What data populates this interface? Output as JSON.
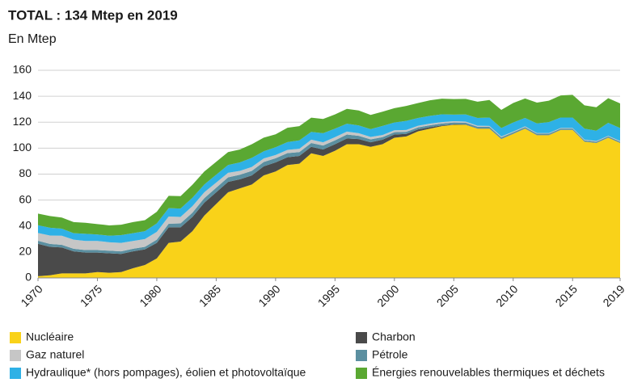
{
  "chart_data": {
    "type": "stacked_area",
    "title": "TOTAL : 134 Mtep en 2019",
    "subtitle": "En Mtep",
    "x": [
      1970,
      1971,
      1972,
      1973,
      1974,
      1975,
      1976,
      1977,
      1978,
      1979,
      1980,
      1981,
      1982,
      1983,
      1984,
      1985,
      1986,
      1987,
      1988,
      1989,
      1990,
      1991,
      1992,
      1993,
      1994,
      1995,
      1996,
      1997,
      1998,
      1999,
      2000,
      2001,
      2002,
      2003,
      2004,
      2005,
      2006,
      2007,
      2008,
      2009,
      2010,
      2011,
      2012,
      2013,
      2014,
      2015,
      2016,
      2017,
      2018,
      2019
    ],
    "xlim": [
      1970,
      2019
    ],
    "xticks": [
      1970,
      1975,
      1980,
      1985,
      1990,
      1995,
      2000,
      2005,
      2010,
      2015,
      2019
    ],
    "ylim": [
      0,
      160
    ],
    "yticks": [
      0,
      20,
      40,
      60,
      80,
      100,
      120,
      140,
      160
    ],
    "grid": true,
    "series": [
      {
        "name": "Nucléaire",
        "color": "#f9d219",
        "values": [
          1.3,
          2,
          3.5,
          3.5,
          3.5,
          4.5,
          4,
          4.5,
          7.5,
          10,
          15,
          27,
          28,
          36,
          48,
          57,
          66,
          69,
          72,
          79,
          82,
          87,
          88,
          96,
          94,
          98,
          103,
          103,
          101,
          103,
          108,
          109,
          113,
          115,
          117,
          118,
          118,
          115,
          115,
          107,
          111,
          115,
          110,
          110,
          114,
          114,
          105,
          104,
          108,
          104
        ]
      },
      {
        "name": "Charbon",
        "color": "#4a4a4a",
        "values": [
          25,
          22,
          20,
          17,
          16,
          15,
          15,
          14,
          13,
          12,
          12,
          12,
          11,
          11,
          10,
          9,
          8,
          7,
          7,
          7,
          7,
          6,
          6,
          5,
          5,
          5,
          4.5,
          4,
          3.5,
          3.5,
          2.5,
          2,
          1.5,
          1.2,
          0.5,
          0.3,
          0.2,
          0.2,
          0.2,
          0.1,
          0.1,
          0.1,
          0.1,
          0.1,
          0.1,
          0.1,
          0,
          0,
          0,
          0
        ]
      },
      {
        "name": "Pétrole",
        "color": "#5b8fa0",
        "values": [
          2.3,
          2.2,
          2,
          2,
          2,
          2,
          2,
          2,
          2,
          2,
          2.5,
          2.8,
          3,
          3.3,
          3.5,
          3.5,
          3.5,
          3.5,
          3.5,
          3.3,
          3.2,
          3.2,
          3,
          3,
          3,
          3,
          3,
          2.5,
          2.3,
          2,
          1.8,
          1.6,
          1.5,
          1.5,
          1.5,
          1.5,
          1.4,
          1.3,
          1.2,
          1.2,
          1.1,
          1.1,
          1,
          1,
          1,
          1,
          1,
          1,
          1,
          1
        ]
      },
      {
        "name": "Gaz naturel",
        "color": "#c6c6c6",
        "values": [
          6,
          6.5,
          7,
          7,
          7,
          7,
          6.5,
          6.5,
          6,
          6,
          6,
          5.5,
          5,
          5,
          4.5,
          4,
          3.5,
          3,
          3,
          2.8,
          2.5,
          2.5,
          2.5,
          2.5,
          2.5,
          2.5,
          2.3,
          2,
          1.8,
          1.6,
          1.5,
          1.4,
          1.3,
          1.2,
          1.1,
          1,
          0.9,
          0.8,
          0.7,
          0.7,
          0.6,
          0.6,
          0.5,
          0.5,
          0.5,
          0.5,
          0.5,
          0.5,
          0.5,
          0.5
        ]
      },
      {
        "name": "Hydraulique* (hors pompages), éolien et photovoltaïque",
        "color": "#2eb1e6",
        "values": [
          6,
          6,
          5.5,
          5,
          5.5,
          5,
          5,
          6,
          6,
          6,
          6.5,
          6.5,
          6.5,
          6.5,
          6,
          6,
          6,
          6.5,
          7,
          5.5,
          6,
          6,
          6.5,
          6,
          7,
          6.5,
          6,
          6,
          6,
          7,
          6,
          7,
          6,
          6,
          6,
          5,
          5.5,
          6,
          6.5,
          6.5,
          7,
          6.5,
          7.5,
          8.5,
          8,
          8,
          8.5,
          8,
          10,
          10
        ]
      },
      {
        "name": "Énergies renouvelables thermiques et déchets",
        "color": "#5aa832",
        "values": [
          9,
          9,
          8.5,
          8.5,
          8.5,
          8,
          8,
          8,
          8.5,
          8.5,
          9,
          9.5,
          9.5,
          10,
          10,
          10,
          10,
          10,
          10.5,
          10.5,
          10,
          11,
          11,
          11,
          11,
          11,
          11.5,
          11.5,
          11,
          11,
          11,
          11.5,
          11.5,
          12,
          12,
          12,
          12,
          12.5,
          13.5,
          14,
          15,
          15,
          16,
          16.5,
          17,
          17.5,
          18,
          18,
          19,
          19
        ]
      }
    ]
  }
}
